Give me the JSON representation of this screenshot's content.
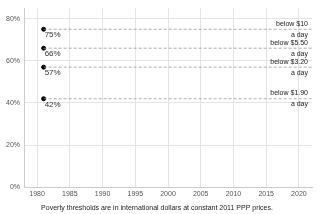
{
  "chart_data": {
    "type": "scatter",
    "caption": "Poverty thresholds are in international dollars at constant 2011 PPP prices.",
    "x": [
      1981
    ],
    "xlim": [
      1978,
      2022
    ],
    "xticks": [
      1980,
      1985,
      1990,
      1995,
      2000,
      2005,
      2010,
      2015,
      2020
    ],
    "ylim": [
      0,
      85
    ],
    "yticks": [
      {
        "value": 0,
        "label": "0%"
      },
      {
        "value": 20,
        "label": "20%"
      },
      {
        "value": 40,
        "label": "40%"
      },
      {
        "value": 60,
        "label": "60%"
      },
      {
        "value": 80,
        "label": "80%"
      }
    ],
    "grid": true,
    "data_labels": true,
    "series": [
      {
        "name": [
          "below $10",
          "a day"
        ],
        "color": "#000000",
        "values": [
          75
        ],
        "value_labels": [
          "75%"
        ],
        "line_style": "dashed"
      },
      {
        "name": [
          "below $5.50",
          "a day"
        ],
        "color": "#000000",
        "values": [
          66
        ],
        "value_labels": [
          "66%"
        ],
        "line_style": "dashed"
      },
      {
        "name": [
          "below $3.20",
          "a day"
        ],
        "color": "#000000",
        "values": [
          57
        ],
        "value_labels": [
          "57%"
        ],
        "line_style": "dashed"
      },
      {
        "name": [
          "below $1.90",
          "a day"
        ],
        "color": "#000000",
        "values": [
          42
        ],
        "value_labels": [
          "42%"
        ],
        "line_style": "dashed"
      }
    ]
  }
}
